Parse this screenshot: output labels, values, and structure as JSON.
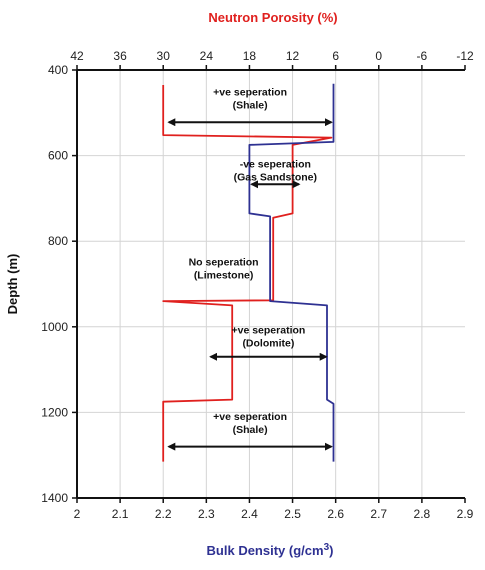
{
  "chart_data": {
    "type": "line",
    "title": "",
    "top_axis": {
      "label": "Neutron Porosity (%)",
      "color": "#e0201e",
      "range": [
        42,
        -12
      ],
      "ticks": [
        42,
        36,
        30,
        24,
        18,
        12,
        6,
        0,
        -6,
        -12
      ],
      "tick_labels": [
        "42",
        "36",
        "30",
        "24",
        "18",
        "12",
        "6",
        "0",
        "-6",
        "-12"
      ]
    },
    "bottom_axis": {
      "label_main": "Bulk Density (g/cm",
      "label_sup": "3",
      "label_end": ")",
      "color": "#2e3192",
      "range": [
        2.0,
        2.9
      ],
      "ticks": [
        2.0,
        2.1,
        2.2,
        2.3,
        2.4,
        2.5,
        2.6,
        2.7,
        2.8,
        2.9
      ],
      "tick_labels": [
        "2",
        "2.1",
        "2.2",
        "2.3",
        "2.4",
        "2.5",
        "2.6",
        "2.7",
        "2.8",
        "2.9"
      ]
    },
    "y_axis": {
      "label": "Depth (m)",
      "range": [
        400,
        1400
      ],
      "inverted": true,
      "ticks": [
        400,
        600,
        800,
        1000,
        1200,
        1400
      ],
      "tick_labels": [
        "400",
        "600",
        "800",
        "1000",
        "1200",
        "1400"
      ]
    },
    "grid": true,
    "series": [
      {
        "name": "Neutron Porosity",
        "axis": "top",
        "color": "#e0201e",
        "points": [
          [
            30,
            435
          ],
          [
            30,
            552
          ],
          [
            6.6,
            558
          ],
          [
            12,
            575
          ],
          [
            12,
            735
          ],
          [
            14.7,
            745
          ],
          [
            14.7,
            938
          ],
          [
            30,
            940
          ],
          [
            20.4,
            950
          ],
          [
            20.4,
            1170
          ],
          [
            30,
            1175
          ],
          [
            30,
            1315
          ]
        ]
      },
      {
        "name": "Bulk Density",
        "axis": "bottom",
        "color": "#2e3192",
        "points": [
          [
            2.595,
            432
          ],
          [
            2.595,
            555
          ],
          [
            2.595,
            568
          ],
          [
            2.4,
            575
          ],
          [
            2.4,
            735
          ],
          [
            2.448,
            742
          ],
          [
            2.448,
            940
          ],
          [
            2.58,
            950
          ],
          [
            2.58,
            1170
          ],
          [
            2.595,
            1180
          ],
          [
            2.595,
            1315
          ]
        ]
      }
    ],
    "annotations": [
      {
        "lines": [
          "+ve seperation",
          "(Shale)"
        ],
        "depth_text": 460,
        "arrow_depth": 522,
        "arrow_from": 2.213,
        "arrow_to": 2.59
      },
      {
        "lines": [
          "-ve seperation",
          "(Gas Sandstone)"
        ],
        "depth_text": 628,
        "arrow_depth": 667,
        "arrow_from": 2.405,
        "arrow_to": 2.515
      },
      {
        "lines": [
          "No seperation",
          "(Limestone)"
        ],
        "depth_text": 857,
        "arrow_depth": null
      },
      {
        "lines": [
          "+ve seperation",
          "(Dolomite)"
        ],
        "depth_text": 1016,
        "arrow_depth": 1070,
        "arrow_from": 2.31,
        "arrow_to": 2.578
      },
      {
        "lines": [
          "+ve seperation",
          "(Shale)"
        ],
        "depth_text": 1218,
        "arrow_depth": 1280,
        "arrow_from": 2.213,
        "arrow_to": 2.59
      }
    ]
  }
}
